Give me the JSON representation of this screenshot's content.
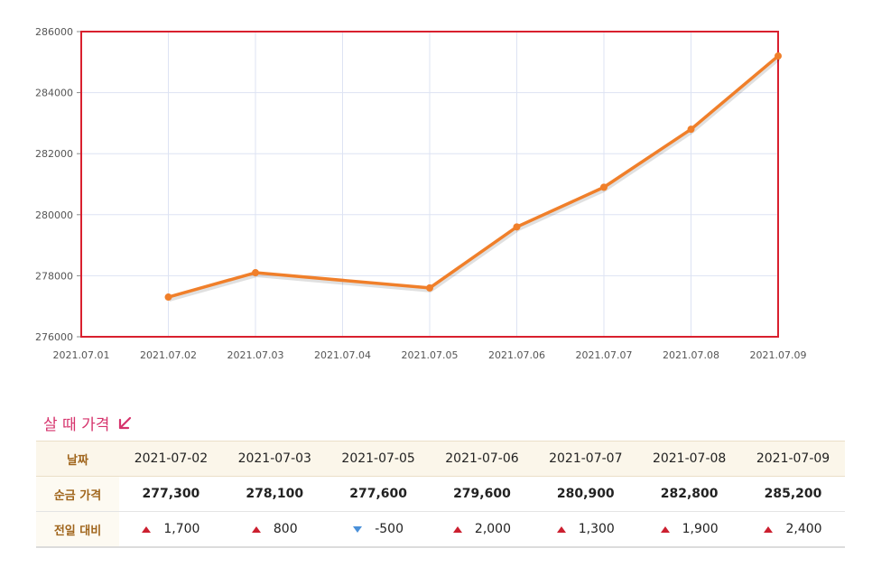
{
  "chart_data": {
    "type": "line",
    "x": [
      "2021.07.02",
      "2021.07.03",
      "2021.07.05",
      "2021.07.06",
      "2021.07.07",
      "2021.07.08",
      "2021.07.09"
    ],
    "x_ticks": [
      "2021.07.01",
      "2021.07.02",
      "2021.07.03",
      "2021.07.04",
      "2021.07.05",
      "2021.07.06",
      "2021.07.07",
      "2021.07.08",
      "2021.07.09"
    ],
    "y_ticks": [
      "286000",
      "284000",
      "282000",
      "280000",
      "278000",
      "276000"
    ],
    "series": [
      {
        "values": [
          277300,
          278100,
          277600,
          279600,
          280900,
          282800,
          285200
        ]
      }
    ],
    "ylim": [
      276000,
      286000
    ],
    "grid": true,
    "line_color": "#f07f2a",
    "frame_color": "#d9202e",
    "grid_color": "#dde3f3"
  },
  "section": {
    "title": "살 때 가격",
    "icon": "arrow-down-left-icon",
    "accent_color": "#d6336c"
  },
  "table": {
    "header_label": "날짜",
    "price_label": "순금 가격",
    "change_label": "전일 대비",
    "dates": [
      "2021-07-02",
      "2021-07-03",
      "2021-07-05",
      "2021-07-06",
      "2021-07-07",
      "2021-07-08",
      "2021-07-09"
    ],
    "prices": [
      "277,300",
      "278,100",
      "277,600",
      "279,600",
      "280,900",
      "282,800",
      "285,200"
    ],
    "changes": [
      {
        "dir": "up",
        "value": "1,700"
      },
      {
        "dir": "up",
        "value": "800"
      },
      {
        "dir": "down",
        "value": "-500"
      },
      {
        "dir": "up",
        "value": "2,000"
      },
      {
        "dir": "up",
        "value": "1,300"
      },
      {
        "dir": "up",
        "value": "1,900"
      },
      {
        "dir": "up",
        "value": "2,400"
      }
    ],
    "up_color": "#cc1f2f",
    "down_color": "#4a90d9"
  }
}
